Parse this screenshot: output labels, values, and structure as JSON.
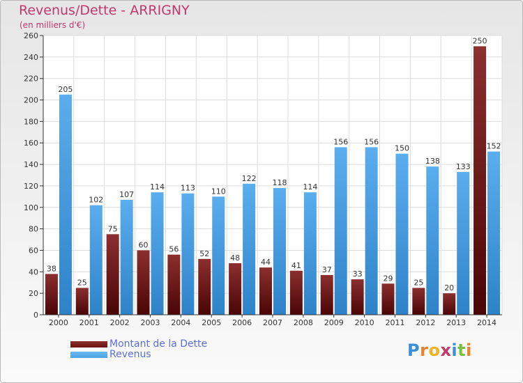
{
  "header": {
    "title": "Revenus/Dette - ARRIGNY",
    "subtitle": "(en milliers d'€)"
  },
  "chart_data": {
    "type": "bar",
    "categories": [
      "2000",
      "2001",
      "2002",
      "2003",
      "2004",
      "2005",
      "2006",
      "2007",
      "2008",
      "2009",
      "2010",
      "2011",
      "2012",
      "2013",
      "2014"
    ],
    "series": [
      {
        "name": "Montant de la Dette",
        "color": "#7a1e1e",
        "values": [
          38,
          25,
          75,
          60,
          56,
          52,
          48,
          44,
          41,
          37,
          33,
          29,
          25,
          20,
          250
        ]
      },
      {
        "name": "Revenus",
        "color": "#4aa3e6",
        "values": [
          205,
          102,
          107,
          114,
          113,
          110,
          122,
          118,
          114,
          156,
          156,
          150,
          138,
          133,
          152
        ]
      }
    ],
    "ylim": [
      0,
      260
    ],
    "yticks": [
      0,
      20,
      40,
      60,
      80,
      100,
      120,
      140,
      160,
      180,
      200,
      220,
      240,
      260
    ],
    "grid": true,
    "legend_position": "bottom-left"
  },
  "legend": {
    "items": [
      {
        "label": "Montant de la Dette",
        "color": "#6b0f0f"
      },
      {
        "label": "Revenus",
        "color": "#4aa3e6"
      }
    ]
  },
  "logo": {
    "letters": [
      "P",
      "r",
      "o",
      "x",
      "i",
      "t",
      "i"
    ],
    "colors": [
      "#3b8fd6",
      "#e8832a",
      "#f0b323",
      "#c33a6a",
      "#3b8fd6",
      "#7bbf3a",
      "#e8832a"
    ]
  }
}
